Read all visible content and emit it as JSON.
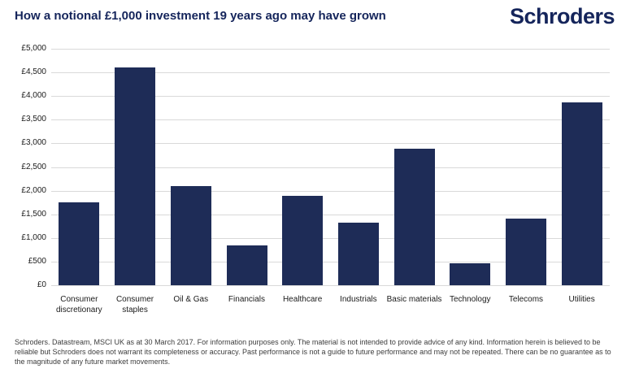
{
  "header": {
    "title": "How a notional £1,000 investment 19 years ago may have grown",
    "logo": "Schroders"
  },
  "chart_data": {
    "type": "bar",
    "title": "How a notional £1,000 investment 19 years ago may have grown",
    "categories": [
      "Consumer discretionary",
      "Consumer staples",
      "Oil & Gas",
      "Financials",
      "Healthcare",
      "Industrials",
      "Basic materials",
      "Technology",
      "Telecoms",
      "Utilities"
    ],
    "values": [
      1750,
      4600,
      2100,
      840,
      1890,
      1320,
      2880,
      470,
      1410,
      3870
    ],
    "xlabel": "",
    "ylabel": "",
    "ylim": [
      0,
      5000
    ],
    "ytick_step": 500,
    "ytick_labels": [
      "£0",
      "£500",
      "£1,000",
      "£1,500",
      "£2,000",
      "£2,500",
      "£3,000",
      "£3,500",
      "£4,000",
      "£4,500",
      "£5,000"
    ],
    "grid": true,
    "legend": "none",
    "bar_color": "#1e2c57",
    "gridline_color": "#d9d9d9"
  },
  "footer": {
    "disclaimer": "Schroders. Datastream, MSCI UK as at 30 March 2017. For information purposes only. The material is not intended to provide advice of any kind. Information herein is believed to be reliable but Schroders does not warrant its completeness or accuracy. Past performance is not a guide to future performance and may not be repeated. There can be no guarantee as to the magnitude of any future market movements."
  },
  "colors": {
    "brand_navy": "#15255b",
    "bar_navy": "#1e2c57",
    "gridline": "#d9d9d9",
    "axis_text": "#1a1a1a",
    "footer_text": "#3c3c3c"
  }
}
